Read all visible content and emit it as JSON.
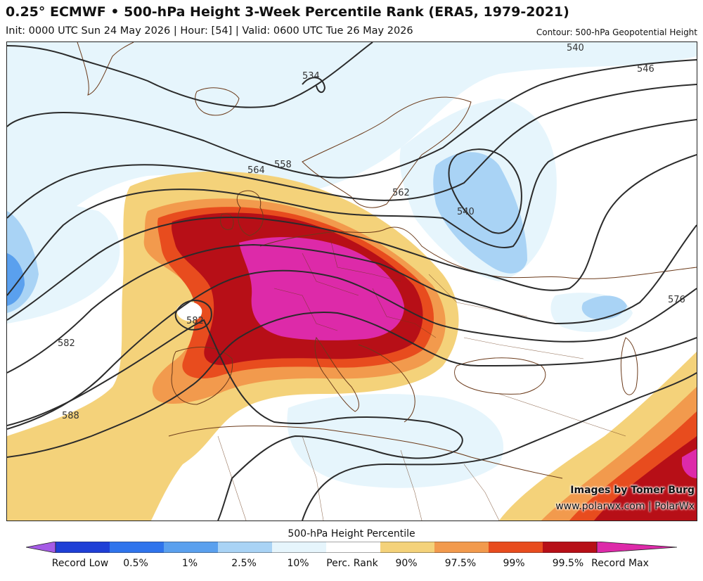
{
  "header": {
    "title": "0.25° ECMWF • 500-hPa Height 3-Week Percentile Rank (ERA5, 1979-2021)",
    "subtitle": "Init: 0000 UTC Sun 24 May 2026 | Hour: [54] | Valid: 0600 UTC Tue 26 May 2026",
    "contour_note": "Contour: 500-hPa Geopotential Height"
  },
  "map": {
    "contour_labels": [
      "534",
      "540",
      "546",
      "558",
      "564",
      "562",
      "540",
      "576",
      "582",
      "582",
      "588"
    ],
    "credit_line1": "Images by Tomer Burg",
    "credit_line2": "www.polarwx.com | PolarWx"
  },
  "colorbar": {
    "title": "500-hPa Height Percentile",
    "labels": [
      "Record Low",
      "0.5%",
      "1%",
      "2.5%",
      "10%",
      "Perc. Rank",
      "90%",
      "97.5%",
      "99%",
      "99.5%",
      "Record Max"
    ],
    "colors": {
      "record_low": "#a55be6",
      "p0_5": "#1f3fd6",
      "p1": "#2f74ec",
      "p2_5": "#5aa0ee",
      "p10": "#a9d3f5",
      "perc_rank": "#e6f5fc",
      "p90": "#f4d27a",
      "p97_5": "#f29a4d",
      "p99": "#e84c1e",
      "p99_5": "#b70f17",
      "record_max": "#dd2aa9"
    }
  }
}
